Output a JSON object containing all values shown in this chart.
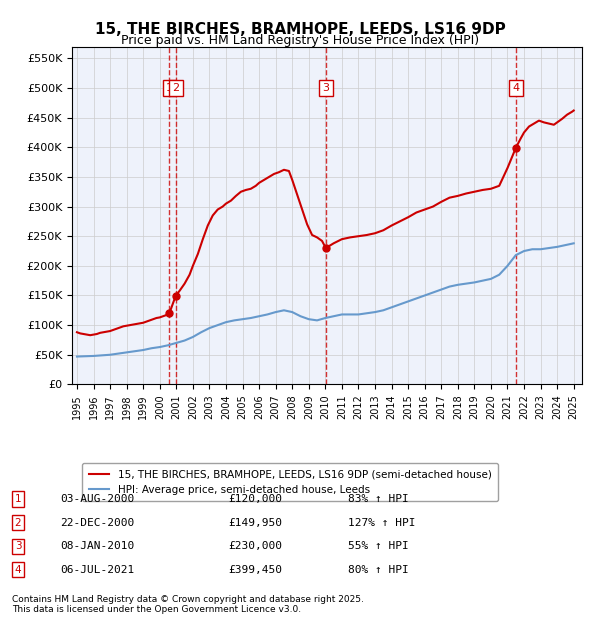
{
  "title": "15, THE BIRCHES, BRAMHOPE, LEEDS, LS16 9DP",
  "subtitle": "Price paid vs. HM Land Registry's House Price Index (HPI)",
  "background_color": "#eef2fb",
  "plot_bg_color": "#eef2fb",
  "ylabel_color": "#222222",
  "ylim": [
    0,
    570000
  ],
  "yticks": [
    0,
    50000,
    100000,
    150000,
    200000,
    250000,
    300000,
    350000,
    400000,
    450000,
    500000,
    550000
  ],
  "xlim_start": 1995.0,
  "xlim_end": 2026.0,
  "legend_line1": "15, THE BIRCHES, BRAMHOPE, LEEDS, LS16 9DP (semi-detached house)",
  "legend_line2": "HPI: Average price, semi-detached house, Leeds",
  "footer1": "Contains HM Land Registry data © Crown copyright and database right 2025.",
  "footer2": "This data is licensed under the Open Government Licence v3.0.",
  "transactions": [
    {
      "num": 1,
      "date": "03-AUG-2000",
      "price": "£120,000",
      "hpi": "83% ↑ HPI",
      "year": 2000.58
    },
    {
      "num": 2,
      "date": "22-DEC-2000",
      "price": "£149,950",
      "hpi": "127% ↑ HPI",
      "year": 2000.97
    },
    {
      "num": 3,
      "date": "08-JAN-2010",
      "price": "£230,000",
      "hpi": "55% ↑ HPI",
      "year": 2010.03
    },
    {
      "num": 4,
      "date": "06-JUL-2021",
      "price": "£399,450",
      "hpi": "80% ↑ HPI",
      "year": 2021.51
    }
  ],
  "red_line_color": "#cc0000",
  "blue_line_color": "#6699cc",
  "dashed_line_color": "#cc0000",
  "hpi_red_data": {
    "x": [
      1995.0,
      1995.2,
      1995.4,
      1995.6,
      1995.8,
      1996.0,
      1996.2,
      1996.4,
      1996.6,
      1996.8,
      1997.0,
      1997.2,
      1997.4,
      1997.6,
      1997.8,
      1998.0,
      1998.2,
      1998.4,
      1998.6,
      1998.8,
      1999.0,
      1999.2,
      1999.4,
      1999.6,
      1999.8,
      2000.0,
      2000.2,
      2000.4,
      2000.58
    ],
    "y": [
      88000,
      86000,
      85000,
      84000,
      83000,
      84000,
      85000,
      87000,
      88000,
      89000,
      90000,
      92000,
      94000,
      96000,
      98000,
      99000,
      100000,
      101000,
      102000,
      103000,
      104000,
      106000,
      108000,
      110000,
      112000,
      113000,
      115000,
      117000,
      120000
    ]
  },
  "price_red_data": {
    "x": [
      2000.58,
      2000.97
    ],
    "y": [
      120000,
      149950
    ]
  },
  "hpi_red_data2": {
    "x": [
      2000.97,
      2001.2,
      2001.5,
      2001.8,
      2002.0,
      2002.3,
      2002.6,
      2002.9,
      2003.2,
      2003.5,
      2003.8,
      2004.0,
      2004.3,
      2004.6,
      2004.9,
      2005.2,
      2005.5,
      2005.8,
      2006.0,
      2006.3,
      2006.6,
      2006.9,
      2007.2,
      2007.5,
      2007.8,
      2008.0,
      2008.3,
      2008.6,
      2008.9,
      2009.2,
      2009.5,
      2009.8,
      2010.03
    ],
    "y": [
      149950,
      158000,
      170000,
      185000,
      200000,
      220000,
      245000,
      268000,
      285000,
      295000,
      300000,
      305000,
      310000,
      318000,
      325000,
      328000,
      330000,
      335000,
      340000,
      345000,
      350000,
      355000,
      358000,
      362000,
      360000,
      345000,
      320000,
      295000,
      270000,
      252000,
      248000,
      242000,
      230000
    ]
  },
  "hpi_red_data3": {
    "x": [
      2010.03,
      2010.5,
      2011.0,
      2011.5,
      2012.0,
      2012.5,
      2013.0,
      2013.5,
      2014.0,
      2014.5,
      2015.0,
      2015.5,
      2016.0,
      2016.5,
      2017.0,
      2017.5,
      2018.0,
      2018.5,
      2019.0,
      2019.5,
      2020.0,
      2020.5,
      2021.0,
      2021.51
    ],
    "y": [
      230000,
      238000,
      245000,
      248000,
      250000,
      252000,
      255000,
      260000,
      268000,
      275000,
      282000,
      290000,
      295000,
      300000,
      308000,
      315000,
      318000,
      322000,
      325000,
      328000,
      330000,
      335000,
      365000,
      399450
    ]
  },
  "hpi_red_data4": {
    "x": [
      2021.51,
      2021.8,
      2022.0,
      2022.3,
      2022.6,
      2022.9,
      2023.2,
      2023.5,
      2023.8,
      2024.0,
      2024.3,
      2024.6,
      2024.9,
      2025.0
    ],
    "y": [
      399450,
      415000,
      425000,
      435000,
      440000,
      445000,
      442000,
      440000,
      438000,
      442000,
      448000,
      455000,
      460000,
      462000
    ]
  },
  "hpi_blue_data": {
    "x": [
      1995.0,
      1995.5,
      1996.0,
      1996.5,
      1997.0,
      1997.5,
      1998.0,
      1998.5,
      1999.0,
      1999.5,
      2000.0,
      2000.5,
      2001.0,
      2001.5,
      2002.0,
      2002.5,
      2003.0,
      2003.5,
      2004.0,
      2004.5,
      2005.0,
      2005.5,
      2006.0,
      2006.5,
      2007.0,
      2007.5,
      2008.0,
      2008.5,
      2009.0,
      2009.5,
      2010.0,
      2010.5,
      2011.0,
      2011.5,
      2012.0,
      2012.5,
      2013.0,
      2013.5,
      2014.0,
      2014.5,
      2015.0,
      2015.5,
      2016.0,
      2016.5,
      2017.0,
      2017.5,
      2018.0,
      2018.5,
      2019.0,
      2019.5,
      2020.0,
      2020.5,
      2021.0,
      2021.5,
      2022.0,
      2022.5,
      2023.0,
      2023.5,
      2024.0,
      2024.5,
      2025.0
    ],
    "y": [
      47000,
      47500,
      48000,
      49000,
      50000,
      52000,
      54000,
      56000,
      58000,
      61000,
      63000,
      66000,
      70000,
      74000,
      80000,
      88000,
      95000,
      100000,
      105000,
      108000,
      110000,
      112000,
      115000,
      118000,
      122000,
      125000,
      122000,
      115000,
      110000,
      108000,
      112000,
      115000,
      118000,
      118000,
      118000,
      120000,
      122000,
      125000,
      130000,
      135000,
      140000,
      145000,
      150000,
      155000,
      160000,
      165000,
      168000,
      170000,
      172000,
      175000,
      178000,
      185000,
      200000,
      218000,
      225000,
      228000,
      228000,
      230000,
      232000,
      235000,
      238000
    ]
  }
}
